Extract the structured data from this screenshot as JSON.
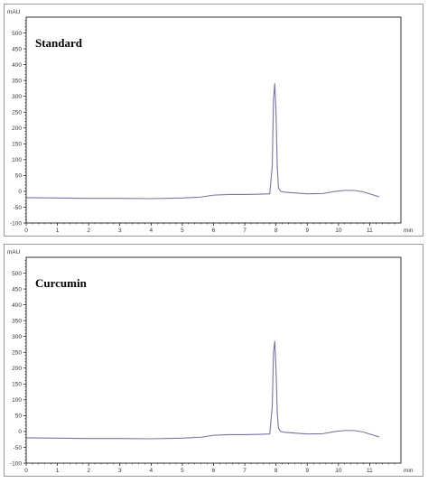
{
  "chart_data": [
    {
      "type": "line",
      "title": "Standard",
      "ylabel": "mAU",
      "xlabel": "min",
      "xlim": [
        0,
        12
      ],
      "ylim": [
        -100,
        550
      ],
      "xticks": [
        0,
        1,
        2,
        3,
        4,
        5,
        6,
        7,
        8,
        9,
        10,
        11
      ],
      "yticks": [
        -100,
        -50,
        0,
        50,
        100,
        150,
        200,
        250,
        300,
        350,
        400,
        450,
        500
      ],
      "series": [
        {
          "color": "#7b6fb0",
          "x": [
            0,
            1,
            2,
            3,
            4,
            5,
            5.6,
            6.0,
            6.5,
            7.0,
            7.5,
            7.8,
            7.88,
            7.92,
            7.96,
            8.0,
            8.04,
            8.08,
            8.15,
            8.3,
            8.6,
            9.0,
            9.5,
            9.9,
            10.2,
            10.5,
            10.8,
            11.0,
            11.3
          ],
          "y": [
            -20,
            -21,
            -22,
            -22,
            -23,
            -21,
            -18,
            -12,
            -10,
            -10,
            -9,
            -8,
            80,
            290,
            340,
            250,
            80,
            10,
            0,
            -3,
            -5,
            -8,
            -7,
            0,
            3,
            3,
            -2,
            -8,
            -17
          ]
        }
      ]
    },
    {
      "type": "line",
      "title": "Curcumin",
      "ylabel": "mAU",
      "xlabel": "min",
      "xlim": [
        0,
        12
      ],
      "ylim": [
        -100,
        550
      ],
      "xticks": [
        0,
        1,
        2,
        3,
        4,
        5,
        6,
        7,
        8,
        9,
        10,
        11
      ],
      "yticks": [
        -100,
        -50,
        0,
        50,
        100,
        150,
        200,
        250,
        300,
        350,
        400,
        450,
        500
      ],
      "series": [
        {
          "color": "#7b6fb0",
          "x": [
            0,
            1,
            2,
            3,
            4,
            5,
            5.6,
            6.0,
            6.5,
            7.0,
            7.5,
            7.8,
            7.88,
            7.92,
            7.96,
            8.0,
            8.04,
            8.08,
            8.15,
            8.3,
            8.6,
            9.0,
            9.5,
            9.9,
            10.2,
            10.5,
            10.8,
            11.0,
            11.3
          ],
          "y": [
            -20,
            -21,
            -22,
            -22,
            -23,
            -21,
            -18,
            -12,
            -10,
            -10,
            -9,
            -8,
            80,
            250,
            285,
            200,
            60,
            10,
            0,
            -3,
            -5,
            -8,
            -7,
            0,
            3,
            3,
            -2,
            -8,
            -17
          ]
        }
      ]
    }
  ]
}
